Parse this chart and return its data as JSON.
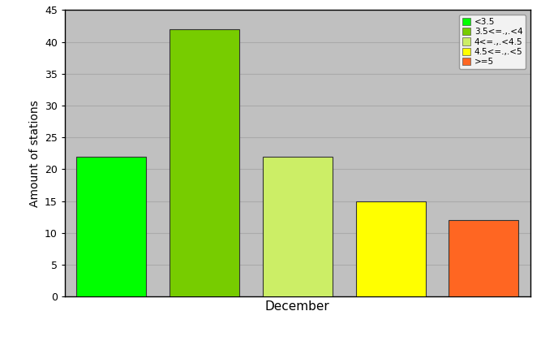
{
  "categories": [
    "<3.5",
    "3.5<=.,.<4",
    "4<=.,.<4.5",
    "4.5<=.,.<5",
    ">=5"
  ],
  "values": [
    22,
    42,
    22,
    15,
    12
  ],
  "bar_colors": [
    "#00ff00",
    "#77cc00",
    "#ccee66",
    "#ffff00",
    "#ff6622"
  ],
  "xlabel": "December",
  "ylabel": "Amount of stations",
  "ylim": [
    0,
    45
  ],
  "yticks": [
    0,
    5,
    10,
    15,
    20,
    25,
    30,
    35,
    40,
    45
  ],
  "plot_bg_color": "#c0c0c0",
  "fig_bg_color": "#ffffff",
  "figsize": [
    6.67,
    4.15
  ],
  "dpi": 100
}
